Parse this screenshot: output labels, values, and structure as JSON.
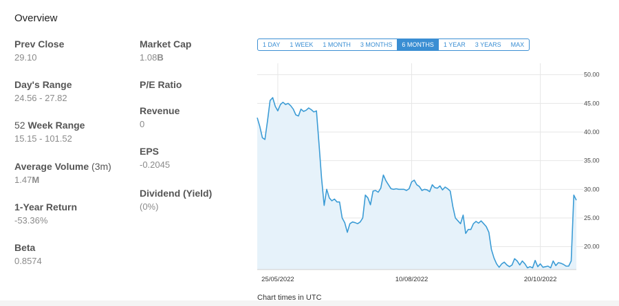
{
  "overview_title": "Overview",
  "left_stats": [
    {
      "label_bold": "Prev Close",
      "label_rest": "",
      "value": "29.10",
      "value_bold": ""
    },
    {
      "label_bold": "Day's Range",
      "label_rest": "",
      "value": "24.56 - 27.82",
      "value_bold": ""
    },
    {
      "label_bold": "Week Range",
      "label_pre": "52 ",
      "label_rest": "",
      "value": "15.15 - 101.52",
      "value_bold": ""
    },
    {
      "label_bold": "Average Volume",
      "label_rest": " (3m)",
      "value": "1.47",
      "value_bold": "M"
    },
    {
      "label_bold": "1-Year Return",
      "label_rest": "",
      "value": "-53.36%",
      "value_bold": ""
    },
    {
      "label_bold": "Beta",
      "label_rest": "",
      "value": "0.8574",
      "value_bold": ""
    }
  ],
  "right_stats": [
    {
      "label": "Market Cap",
      "value": "1.08",
      "value_bold": "B"
    },
    {
      "label": "P/E Ratio",
      "value": "",
      "value_bold": ""
    },
    {
      "label": "Revenue",
      "value": "0",
      "value_bold": ""
    },
    {
      "label": "EPS",
      "value": "-0.2045",
      "value_bold": ""
    },
    {
      "label": "Dividend (Yield)",
      "value": "(0%)",
      "value_bold": ""
    }
  ],
  "range_buttons": [
    "1 DAY",
    "1 WEEK",
    "1 MONTH",
    "3 MONTHS",
    "6 MONTHS",
    "1 YEAR",
    "3 YEARS",
    "MAX"
  ],
  "active_range": "6 MONTHS",
  "footer_note": "Chart times in UTC",
  "colors": {
    "line": "#3a9bd5",
    "fill": "#e6f2fa",
    "grid": "#e6e6e6",
    "active": "#3a8ed3"
  },
  "chart_data": {
    "type": "area",
    "title": "",
    "xlabel": "",
    "ylabel": "",
    "ylim": [
      16,
      52
    ],
    "y_ticks": [
      "20.00",
      "25.00",
      "30.00",
      "35.00",
      "40.00",
      "45.00",
      "50.00"
    ],
    "x_ticks": [
      "25/05/2022",
      "10/08/2022",
      "20/10/2022"
    ],
    "x_tick_pos": [
      8,
      60,
      110
    ],
    "x_range": [
      0,
      124
    ],
    "grid": true,
    "values": [
      42.5,
      41,
      39,
      38.7,
      42,
      45.5,
      46,
      44.5,
      43.7,
      44.8,
      45.2,
      44.8,
      45,
      44.6,
      44,
      43,
      42.8,
      44,
      43.6,
      43.8,
      44.2,
      43.9,
      43.5,
      43.7,
      38,
      32,
      27.2,
      30,
      28.5,
      28,
      28.3,
      27.8,
      27.8,
      25,
      24.2,
      22.5,
      24,
      24.3,
      24.2,
      24,
      24.3,
      25,
      29,
      28.5,
      27.3,
      29.7,
      29.8,
      29.5,
      30.2,
      32.5,
      31.5,
      30.8,
      30.1,
      30,
      30.1,
      30,
      30,
      30,
      29.8,
      30.1,
      31.3,
      31.6,
      30.8,
      30.5,
      29.8,
      30,
      29.9,
      29.6,
      30.8,
      30.3,
      30.2,
      30.6,
      29.9,
      30.4,
      30.1,
      29.7,
      27,
      25,
      24.5,
      24,
      25.5,
      22.3,
      23,
      23,
      24,
      24.4,
      24.1,
      24.5,
      24,
      23.5,
      22.5,
      19.5,
      18,
      17,
      16.4,
      17,
      17.3,
      16.8,
      16.5,
      16.8,
      17.9,
      17.5,
      16.8,
      17.5,
      17,
      16.3,
      16.5,
      16.3,
      17.6,
      16.5,
      17,
      16.4,
      16.5,
      16.6,
      16.3,
      17.5,
      16.7,
      17.2,
      17.1,
      16.9,
      16.6,
      16.6,
      17.5,
      29,
      28.1
    ]
  }
}
